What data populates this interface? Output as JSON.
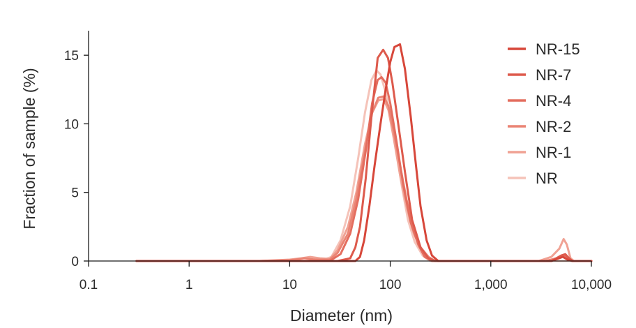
{
  "chart_data": {
    "type": "line",
    "title": "",
    "xlabel": "Diameter (nm)",
    "ylabel": "Fraction of sample (%)",
    "xscale": "log",
    "xlim": [
      0.1,
      10000
    ],
    "ylim": [
      0,
      16
    ],
    "xticks": [
      0.1,
      1,
      10,
      100,
      1000,
      10000
    ],
    "xtick_labels": [
      "0.1",
      "1",
      "10",
      "100",
      "1,000",
      "10,000"
    ],
    "yticks": [
      0,
      5,
      10,
      15
    ],
    "ytick_labels": [
      "0",
      "5",
      "10",
      "15"
    ],
    "grid": false,
    "legend_position": "top-right",
    "series": [
      {
        "name": "NR-15",
        "color": "#d7473a",
        "points": [
          [
            0.3,
            0
          ],
          [
            10,
            0
          ],
          [
            30,
            0
          ],
          [
            45,
            0
          ],
          [
            50,
            0.3
          ],
          [
            55,
            1.5
          ],
          [
            62,
            4
          ],
          [
            70,
            7
          ],
          [
            80,
            10
          ],
          [
            90,
            12.5
          ],
          [
            100,
            14.5
          ],
          [
            110,
            15.6
          ],
          [
            125,
            15.8
          ],
          [
            140,
            14
          ],
          [
            160,
            10.5
          ],
          [
            180,
            7
          ],
          [
            200,
            4
          ],
          [
            230,
            1.5
          ],
          [
            260,
            0.4
          ],
          [
            300,
            0
          ],
          [
            1000,
            0
          ],
          [
            4000,
            0
          ],
          [
            5200,
            0.3
          ],
          [
            5800,
            0.1
          ],
          [
            6500,
            0
          ],
          [
            10000,
            0
          ]
        ]
      },
      {
        "name": "NR-7",
        "color": "#dd5a4c",
        "points": [
          [
            0.3,
            0
          ],
          [
            10,
            0
          ],
          [
            30,
            0
          ],
          [
            40,
            0.2
          ],
          [
            45,
            1
          ],
          [
            50,
            2.5
          ],
          [
            57,
            6
          ],
          [
            65,
            10.5
          ],
          [
            75,
            14.8
          ],
          [
            85,
            15.4
          ],
          [
            95,
            14.8
          ],
          [
            105,
            13
          ],
          [
            120,
            10
          ],
          [
            140,
            6.5
          ],
          [
            165,
            3
          ],
          [
            200,
            1
          ],
          [
            240,
            0.2
          ],
          [
            280,
            0
          ],
          [
            1000,
            0
          ],
          [
            4000,
            0
          ],
          [
            5000,
            0.4
          ],
          [
            5500,
            0.5
          ],
          [
            6000,
            0.2
          ],
          [
            6500,
            0
          ],
          [
            10000,
            0
          ]
        ]
      },
      {
        "name": "NR-4",
        "color": "#e46e5f",
        "points": [
          [
            0.3,
            0
          ],
          [
            10,
            0
          ],
          [
            25,
            0
          ],
          [
            32,
            0.5
          ],
          [
            40,
            2
          ],
          [
            48,
            4.5
          ],
          [
            57,
            8
          ],
          [
            66,
            11.5
          ],
          [
            75,
            13.2
          ],
          [
            82,
            13.4
          ],
          [
            90,
            13
          ],
          [
            100,
            11.5
          ],
          [
            115,
            8.8
          ],
          [
            135,
            5.5
          ],
          [
            160,
            2.8
          ],
          [
            190,
            1.2
          ],
          [
            220,
            0.3
          ],
          [
            260,
            0
          ],
          [
            1000,
            0
          ],
          [
            4000,
            0
          ],
          [
            5000,
            0.3
          ],
          [
            5500,
            0.4
          ],
          [
            6000,
            0.1
          ],
          [
            6500,
            0
          ],
          [
            10000,
            0
          ]
        ]
      },
      {
        "name": "NR-2",
        "color": "#ea8474",
        "points": [
          [
            0.3,
            0
          ],
          [
            5,
            0
          ],
          [
            10,
            0.05
          ],
          [
            14,
            0.2
          ],
          [
            18,
            0.1
          ],
          [
            25,
            0.1
          ],
          [
            30,
            0.6
          ],
          [
            38,
            2
          ],
          [
            46,
            4.5
          ],
          [
            56,
            8
          ],
          [
            66,
            10.8
          ],
          [
            76,
            11.9
          ],
          [
            86,
            12
          ],
          [
            96,
            11.3
          ],
          [
            108,
            9.5
          ],
          [
            125,
            7
          ],
          [
            145,
            4.5
          ],
          [
            170,
            2.4
          ],
          [
            200,
            1
          ],
          [
            240,
            0.3
          ],
          [
            280,
            0
          ],
          [
            1000,
            0
          ],
          [
            3500,
            0
          ],
          [
            4500,
            0.2
          ],
          [
            5200,
            0.4
          ],
          [
            5800,
            0.2
          ],
          [
            6500,
            0
          ],
          [
            10000,
            0
          ]
        ]
      },
      {
        "name": "NR-1",
        "color": "#f0a294",
        "points": [
          [
            0.3,
            0
          ],
          [
            5,
            0
          ],
          [
            10,
            0.1
          ],
          [
            13,
            0.2
          ],
          [
            16,
            0.3
          ],
          [
            20,
            0.2
          ],
          [
            25,
            0.15
          ],
          [
            30,
            0.8
          ],
          [
            38,
            2.5
          ],
          [
            46,
            5
          ],
          [
            56,
            8.5
          ],
          [
            66,
            10.8
          ],
          [
            76,
            11.7
          ],
          [
            86,
            11.8
          ],
          [
            96,
            11
          ],
          [
            108,
            9
          ],
          [
            125,
            6.3
          ],
          [
            145,
            4
          ],
          [
            170,
            2.1
          ],
          [
            200,
            0.9
          ],
          [
            240,
            0.2
          ],
          [
            280,
            0
          ],
          [
            1000,
            0
          ],
          [
            3000,
            0
          ],
          [
            4000,
            0.3
          ],
          [
            4800,
            0.9
          ],
          [
            5300,
            1.6
          ],
          [
            5700,
            1.2
          ],
          [
            6200,
            0.2
          ],
          [
            6700,
            0
          ],
          [
            10000,
            0
          ]
        ]
      },
      {
        "name": "NR",
        "color": "#f5c3b9",
        "points": [
          [
            0.3,
            0
          ],
          [
            5,
            0
          ],
          [
            10,
            0
          ],
          [
            20,
            0
          ],
          [
            26,
            0.3
          ],
          [
            32,
            1.5
          ],
          [
            40,
            4
          ],
          [
            48,
            7.5
          ],
          [
            56,
            10.8
          ],
          [
            65,
            13.2
          ],
          [
            73,
            13.9
          ],
          [
            80,
            13.6
          ],
          [
            90,
            12.3
          ],
          [
            100,
            10.5
          ],
          [
            115,
            8
          ],
          [
            130,
            5.5
          ],
          [
            150,
            3
          ],
          [
            175,
            1.4
          ],
          [
            210,
            0.4
          ],
          [
            250,
            0
          ],
          [
            1000,
            0
          ],
          [
            10000,
            0
          ]
        ]
      }
    ]
  }
}
